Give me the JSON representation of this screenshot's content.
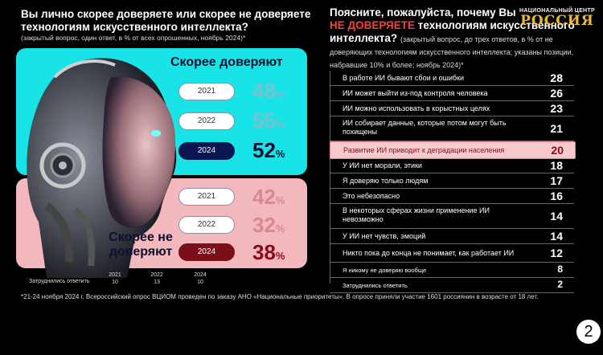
{
  "left": {
    "title": "Вы лично скорее доверяете или скорее не доверяете технологиям искусственного интеллекта?",
    "subtitle": "(закрытый вопрос, один ответ, в % от всех опрошенных, ноябрь 2024)*",
    "trust_label": "Скорее доверяют",
    "distrust_label_1": "Скорее не",
    "distrust_label_2": "доверяют",
    "undecided_label": "Затруднились ответить"
  },
  "right": {
    "title_1": "Поясните, пожалуйста, почему Вы",
    "title_red": "НЕ ДОВЕРЯЕТЕ",
    "title_2": "технологиям искусственного",
    "title_3": "интеллекта?",
    "subtitle": "(закрытый вопрос, до трех ответов, в % от не доверяющих технологиям искусственного интеллекта; указаны позиции, набравшие 10% и более; ноябрь 2024)*"
  },
  "logo": {
    "line1": "НАЦИОНАЛЬНЫЙ ЦЕНТР",
    "line2": "РОССИЯ"
  },
  "footnote": "*21-24 ноября 2024 г. Всероссийский опрос ВЦИОМ проведен по заказу АНО «Национальные приоритеты». В опросе приняли участие 1601 россиянин в возрасте от 18 лет.",
  "page_number": "2",
  "colors": {
    "trust_panel": "#18e3e6",
    "distrust_panel": "#f2b8bd",
    "highlight_row": "#f6c9cd",
    "red_text": "#ff3b3b"
  },
  "chart_data": [
    {
      "type": "table",
      "title": "Вы лично скорее доверяете или скорее не доверяете технологиям искусственного интеллекта?",
      "categories": [
        "2021",
        "2022",
        "2024"
      ],
      "percent_sign": "%",
      "series": [
        {
          "name": "Скорее доверяют",
          "values": [
            48,
            55,
            52
          ]
        },
        {
          "name": "Скорее не доверяют",
          "values": [
            42,
            32,
            38
          ]
        },
        {
          "name": "Затруднились ответить",
          "values": [
            10,
            13,
            10
          ]
        }
      ]
    },
    {
      "type": "table",
      "title": "Поясните, пожалуйста, почему Вы НЕ ДОВЕРЯЕТЕ технологиям искусственного интеллекта?",
      "rows": [
        {
          "label": "В работе ИИ бывают сбои и ошибки",
          "value": 28
        },
        {
          "label": "ИИ может выйти из-под контроля человека",
          "value": 26
        },
        {
          "label": "ИИ можно использовать в корыстных целях",
          "value": 23
        },
        {
          "label": "ИИ собирает данные, которые потом могут быть похищены",
          "value": 21
        },
        {
          "label": "Развитие ИИ приводит к деградации населения",
          "value": 20,
          "highlight": true
        },
        {
          "label": "У ИИ нет морали, этики",
          "value": 18
        },
        {
          "label": "Я доверяю только людям",
          "value": 17
        },
        {
          "label": "Это небезопасно",
          "value": 16
        },
        {
          "label": "В некоторых сферах жизни применение ИИ невозможно",
          "value": 14
        },
        {
          "label": "У ИИ нет чувств, эмоций",
          "value": 14
        },
        {
          "label": "Никто пока до конца не понимает, как работает ИИ",
          "value": 12
        },
        {
          "label": "Я никому не доверяю вообще",
          "value": 8,
          "small": true
        },
        {
          "label": "Затруднились ответить",
          "value": 2,
          "small": true
        }
      ]
    }
  ]
}
